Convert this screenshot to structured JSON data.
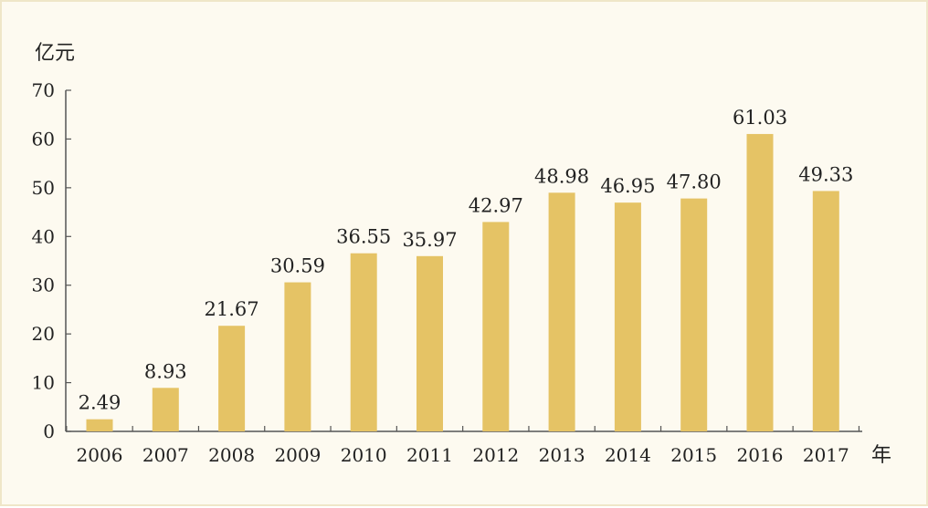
{
  "chart_data": {
    "type": "bar",
    "title": "",
    "ylabel": "亿元",
    "xlabel": "年",
    "categories": [
      "2006",
      "2007",
      "2008",
      "2009",
      "2010",
      "2011",
      "2012",
      "2013",
      "2014",
      "2015",
      "2016",
      "2017"
    ],
    "values": [
      2.49,
      8.93,
      21.67,
      30.59,
      36.55,
      35.97,
      42.97,
      48.98,
      46.95,
      47.8,
      61.03,
      49.33
    ],
    "value_labels": [
      "2.49",
      "8.93",
      "21.67",
      "30.59",
      "36.55",
      "35.97",
      "42.97",
      "48.98",
      "46.95",
      "47.80",
      "61.03",
      "49.33"
    ],
    "ylim": [
      0,
      70
    ],
    "yticks": [
      "0",
      "10",
      "20",
      "30",
      "40",
      "50",
      "60",
      "70"
    ],
    "grid": false,
    "colors": {
      "bar": "#e5c365",
      "axis": "#555555",
      "background": "#fdfaf0",
      "border": "#efe6c8"
    }
  }
}
